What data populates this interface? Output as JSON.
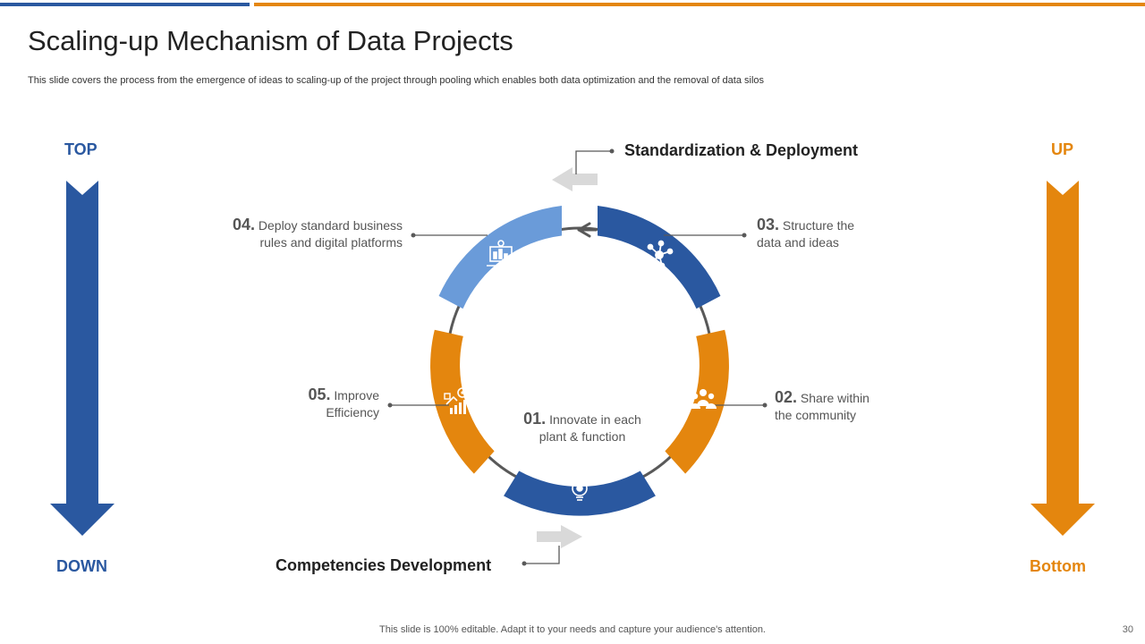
{
  "title": "Scaling-up Mechanism of Data Projects",
  "subtitle": "This slide covers the process from the emergence of ideas to scaling-up of the project through pooling which enables both data optimization and the removal of data silos",
  "left_arrow": {
    "top_label": "TOP",
    "bottom_label": "DOWN",
    "color": "#2a58a0"
  },
  "right_arrow": {
    "top_label": "UP",
    "bottom_label": "Bottom",
    "color": "#e4860e"
  },
  "headings": {
    "top": "Standardization & Deployment",
    "bottom": "Competencies Development"
  },
  "steps": [
    {
      "num": "01.",
      "line1": "Innovate in each",
      "line2": "plant & function",
      "icon": "lightbulb-gear-icon"
    },
    {
      "num": "02.",
      "line1": "Share within",
      "line2": "the community",
      "icon": "people-group-icon"
    },
    {
      "num": "03.",
      "line1": "Structure the",
      "line2": "data and ideas",
      "icon": "network-nodes-icon"
    },
    {
      "num": "04.",
      "line1": "Deploy standard business",
      "line2": "rules and digital platforms",
      "icon": "laptop-dashboard-icon"
    },
    {
      "num": "05.",
      "line1": "Improve",
      "line2": "Efficiency",
      "icon": "growth-chart-icon"
    }
  ],
  "colors": {
    "blue": "#2a58a0",
    "light_blue": "#6a9bd9",
    "orange": "#e4860e",
    "gray_arrow": "#d9d9d9"
  },
  "footer": "This slide is 100% editable. Adapt it to your needs and capture your audience's attention.",
  "page_number": "30"
}
